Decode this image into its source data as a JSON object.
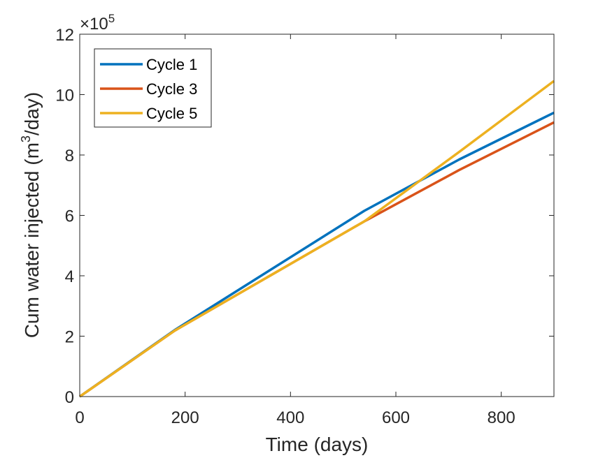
{
  "chart_data": {
    "type": "line",
    "title": "",
    "xlabel": "Time (days)",
    "ylabel_main": "Cum water injected (m",
    "ylabel_sup": "3",
    "ylabel_tail": "/day)",
    "exponent_prefix": "×10",
    "exponent_sup": "5",
    "xlim": [
      0,
      900
    ],
    "ylim": [
      0,
      12
    ],
    "xticks": [
      "0",
      "200",
      "400",
      "600",
      "800"
    ],
    "xtick_values": [
      0,
      200,
      400,
      600,
      800
    ],
    "yticks": [
      "0",
      "2",
      "4",
      "6",
      "8",
      "10",
      "12"
    ],
    "ytick_values": [
      0,
      2,
      4,
      6,
      8,
      10,
      12
    ],
    "legend_position": "top-left",
    "series": [
      {
        "name": "Cycle 1",
        "color": "#0072BD",
        "x": [
          0,
          180,
          540,
          720,
          900
        ],
        "y": [
          0,
          2.2,
          6.15,
          7.85,
          9.4
        ]
      },
      {
        "name": "Cycle 3",
        "color": "#D95319",
        "x": [
          0,
          180,
          540,
          720,
          900
        ],
        "y": [
          0,
          2.18,
          5.8,
          7.5,
          9.08
        ]
      },
      {
        "name": "Cycle 5",
        "color": "#EDB120",
        "x": [
          0,
          180,
          540,
          720,
          900
        ],
        "y": [
          0,
          2.18,
          5.8,
          8.1,
          10.45
        ]
      }
    ]
  }
}
